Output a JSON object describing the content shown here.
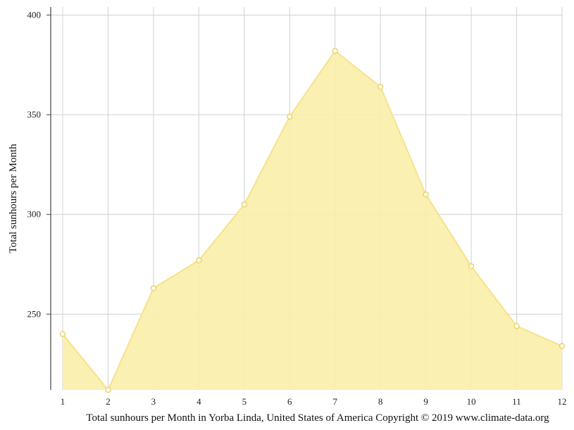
{
  "chart_data": {
    "type": "area",
    "x": [
      1,
      2,
      3,
      4,
      5,
      6,
      7,
      8,
      9,
      10,
      11,
      12
    ],
    "x_tick_labels": [
      "1",
      "2",
      "3",
      "4",
      "5",
      "6",
      "7",
      "8",
      "9",
      "10",
      "11",
      "12"
    ],
    "series": [
      {
        "values": [
          240,
          212,
          263,
          277,
          305,
          349,
          382,
          364,
          310,
          274,
          244,
          234
        ]
      }
    ],
    "ylabel": "Total sunhours per Month",
    "xlabel": "",
    "title": "",
    "caption": "Total sunhours per Month in Yorba Linda, United States of America Copyright © 2019 www.climate-data.org",
    "y_ticks": [
      250,
      300,
      350,
      400
    ],
    "y_tick_labels": [
      "250",
      "300",
      "350",
      "400"
    ],
    "ylim": [
      212,
      404
    ],
    "xlim": [
      1,
      12
    ],
    "grid": true,
    "legend": "none",
    "colors": {
      "fill": "#faeeaa",
      "line": "#f7e28a",
      "marker_stroke": "#e8cf5a",
      "marker_fill": "#ffffff",
      "grid": "#d0d0d0",
      "axis": "#444444"
    }
  }
}
